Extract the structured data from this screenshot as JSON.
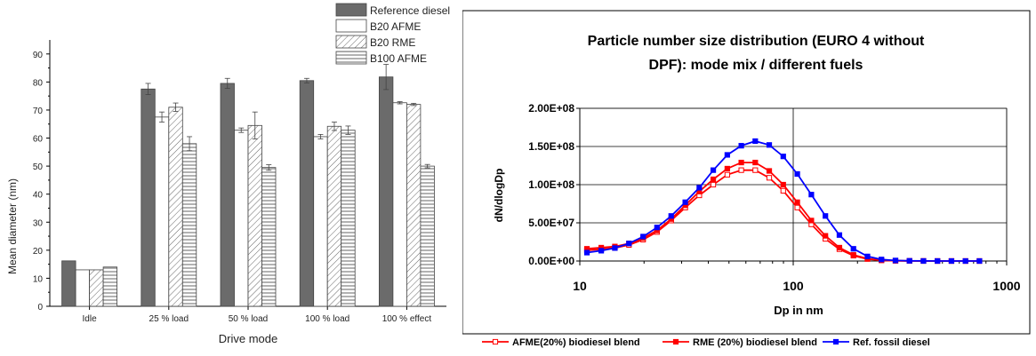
{
  "chart_data": [
    {
      "type": "bar",
      "title": "",
      "xlabel": "Drive mode",
      "ylabel": "Mean diameter (nm)",
      "ylim": [
        0,
        95
      ],
      "yticks": [
        0,
        10,
        20,
        30,
        40,
        50,
        60,
        70,
        80,
        90
      ],
      "categories": [
        "Idle",
        "25 % load",
        "50 % load",
        "100 % load",
        "100 % effect"
      ],
      "legend_position": "top-right",
      "grid": false,
      "series": [
        {
          "name": "Reference diesel",
          "style": "solid-gray",
          "values": [
            16.2,
            77.5,
            79.5,
            80.5,
            81.8
          ],
          "errors": [
            0,
            2.0,
            1.8,
            0.8,
            4.5
          ]
        },
        {
          "name": "B20 AFME",
          "style": "open",
          "values": [
            13.0,
            67.5,
            62.8,
            60.5,
            72.6
          ],
          "errors": [
            0,
            1.8,
            0.8,
            0.8,
            0.4
          ]
        },
        {
          "name": "B20 RME",
          "style": "diagonal-hatch",
          "values": [
            13.0,
            71.0,
            64.5,
            64.2,
            72.0
          ],
          "errors": [
            0,
            1.5,
            4.8,
            1.5,
            0.4
          ]
        },
        {
          "name": "B100 AFME",
          "style": "horizontal-hatch",
          "values": [
            14.0,
            58.0,
            49.5,
            62.8,
            50.0
          ],
          "errors": [
            0,
            2.5,
            1.0,
            1.5,
            0.6
          ]
        }
      ],
      "colors": {
        "solid": "#6b6b6b",
        "edge": "#444444"
      }
    },
    {
      "type": "line",
      "title": "Particle number size distribution (EURO 4 without",
      "title_line2": "DPF):  mode mix / different fuels",
      "xlabel": "Dp in nm",
      "ylabel": "dN/dlogDp",
      "xscale": "log",
      "xlim": [
        10,
        1000
      ],
      "xticks": [
        "10",
        "100",
        "1000"
      ],
      "xtick_values": [
        10,
        100,
        1000
      ],
      "ylim": [
        0,
        200000000
      ],
      "yticks": [
        "0.00E+00",
        "5.00E+07",
        "1.00E+08",
        "1.50E+08",
        "2.00E+08"
      ],
      "ytick_values": [
        0,
        50000000,
        100000000,
        150000000,
        200000000
      ],
      "grid": true,
      "legend_position": "bottom",
      "x": [
        10.8,
        12.6,
        14.6,
        17.0,
        19.8,
        23.0,
        26.8,
        31.2,
        36.3,
        42.2,
        49.1,
        57.1,
        66.4,
        77.2,
        89.8,
        104.5,
        121.6,
        141.5,
        164.6,
        191.5,
        222.8,
        259.1,
        301.4,
        350.5,
        407.6,
        474.1,
        551.4,
        641.2,
        745.8
      ],
      "series": [
        {
          "name": "AFME(20%) biodiesel blend",
          "color": "#ff0000",
          "marker": "open-square",
          "values": [
            14000000,
            15500000,
            17000000,
            21000000,
            28000000,
            38000000,
            53000000,
            70000000,
            86000000,
            100000000,
            113000000,
            119000000,
            119000000,
            109000000,
            92000000,
            70000000,
            48000000,
            29000000,
            15500000,
            7000000,
            2600000,
            900000,
            300000,
            100000,
            30000,
            10000,
            3000,
            1000,
            300
          ]
        },
        {
          "name": "RME (20%) biodiesel blend",
          "color": "#ff0000",
          "marker": "filled-square",
          "values": [
            16000000,
            17500000,
            19000000,
            23000000,
            30000000,
            40000000,
            55000000,
            73000000,
            91000000,
            107000000,
            121000000,
            129000000,
            129000000,
            118000000,
            100000000,
            77000000,
            53000000,
            33000000,
            17500000,
            8000000,
            3000000,
            1000000,
            350000,
            120000,
            40000,
            12000,
            4000,
            1200,
            400
          ]
        },
        {
          "name": "Ref. fossil diesel",
          "color": "#0000ff",
          "marker": "filled-square",
          "values": [
            11000000,
            13500000,
            17000000,
            23000000,
            32000000,
            44000000,
            59000000,
            77000000,
            96000000,
            119000000,
            139000000,
            151000000,
            157000000,
            152000000,
            137000000,
            114000000,
            87000000,
            59000000,
            34000000,
            16000000,
            6000000,
            2000000,
            700000,
            250000,
            80000,
            25000,
            8000,
            2500,
            800
          ]
        }
      ]
    }
  ]
}
